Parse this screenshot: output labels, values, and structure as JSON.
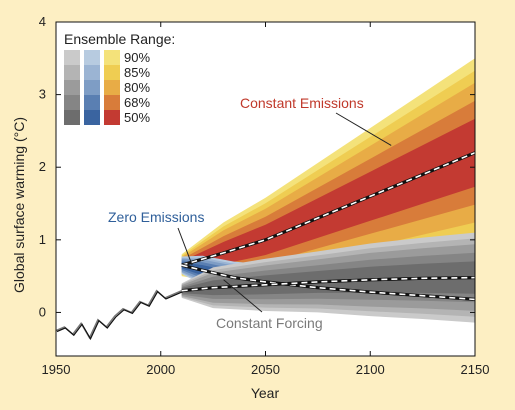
{
  "chart_data": {
    "type": "area",
    "xlabel": "Year",
    "ylabel": "Global surface warming (°C)",
    "xlim": [
      1950,
      2150
    ],
    "ylim": [
      -0.6,
      4
    ],
    "xticks": [
      {
        "value": 1950,
        "label": "1950"
      },
      {
        "value": 2000,
        "label": "2000"
      },
      {
        "value": 2050,
        "label": "2050"
      },
      {
        "value": 2100,
        "label": "2100"
      },
      {
        "value": 2150,
        "label": "2150"
      }
    ],
    "yticks": [
      {
        "value": 0,
        "label": "0"
      },
      {
        "value": 1,
        "label": "1"
      },
      {
        "value": 2,
        "label": "2"
      },
      {
        "value": 3,
        "label": "3"
      },
      {
        "value": 4,
        "label": "4"
      }
    ],
    "legend": {
      "title": "Ensemble Range:",
      "levels": [
        "90%",
        "85%",
        "80%",
        "68%",
        "50%"
      ],
      "placement": "top-left"
    },
    "colors": {
      "background": "#fdefc3",
      "gray": [
        "#cacaca",
        "#b4b4b4",
        "#9b9b9b",
        "#858585",
        "#6d6d6d"
      ],
      "blue": [
        "#b7cbe0",
        "#9bb4d3",
        "#7e9dc5",
        "#5a7fb2",
        "#3a64a0"
      ],
      "warm": [
        "#f4e27a",
        "#efcd52",
        "#e8ac46",
        "#d87c3a",
        "#c33a32"
      ],
      "annotation_red": "#c0392b",
      "annotation_blue": "#2f5f9a",
      "annotation_gray": "#7a7a7a"
    },
    "series": [
      {
        "name": "Constant Emissions",
        "color_group": "warm",
        "x": [
          2010,
          2030,
          2050,
          2075,
          2100,
          2125,
          2150
        ],
        "median": [
          0.65,
          0.82,
          1.0,
          1.3,
          1.6,
          1.9,
          2.2
        ],
        "widths": [
          0.15,
          0.42,
          0.58,
          0.76,
          0.94,
          1.12,
          1.3
        ],
        "fractions": [
          1.0,
          0.87,
          0.74,
          0.55,
          0.36
        ]
      },
      {
        "name": "Zero Emissions",
        "color_group": "blue",
        "x": [
          2010,
          2020,
          2035,
          2050,
          2075,
          2100,
          2125,
          2150
        ],
        "median": [
          0.65,
          0.58,
          0.48,
          0.42,
          0.34,
          0.28,
          0.23,
          0.18
        ],
        "widths": [
          0.12,
          0.2,
          0.22,
          0.24,
          0.25,
          0.26,
          0.27,
          0.28
        ],
        "fractions": [
          1.0,
          0.87,
          0.74,
          0.55,
          0.36
        ]
      },
      {
        "name": "Constant Forcing",
        "color_group": "gray",
        "x": [
          2010,
          2025,
          2050,
          2075,
          2100,
          2125,
          2150
        ],
        "median": [
          0.3,
          0.34,
          0.38,
          0.42,
          0.45,
          0.47,
          0.48
        ],
        "widths": [
          0.1,
          0.28,
          0.36,
          0.42,
          0.5,
          0.56,
          0.62
        ],
        "fractions": [
          1.0,
          0.87,
          0.74,
          0.55,
          0.36
        ]
      }
    ],
    "observed": {
      "x": [
        1950,
        1954,
        1958,
        1962,
        1966,
        1970,
        1974,
        1978,
        1982,
        1986,
        1990,
        1994,
        1998,
        2002,
        2006,
        2010
      ],
      "y": [
        -0.25,
        -0.2,
        -0.3,
        -0.15,
        -0.35,
        -0.1,
        -0.2,
        -0.05,
        0.05,
        0.0,
        0.15,
        0.1,
        0.3,
        0.2,
        0.25,
        0.3
      ]
    },
    "annotations": [
      {
        "text": "Constant Emissions",
        "color": "annotation_red",
        "points_to": {
          "x": 2110,
          "y": 2.3
        }
      },
      {
        "text": "Zero Emissions",
        "color": "annotation_blue",
        "points_to": {
          "x": 2015,
          "y": 0.65
        }
      },
      {
        "text": "Constant Forcing",
        "color": "annotation_gray",
        "points_to": {
          "x": 2030,
          "y": 0.45
        }
      }
    ]
  }
}
